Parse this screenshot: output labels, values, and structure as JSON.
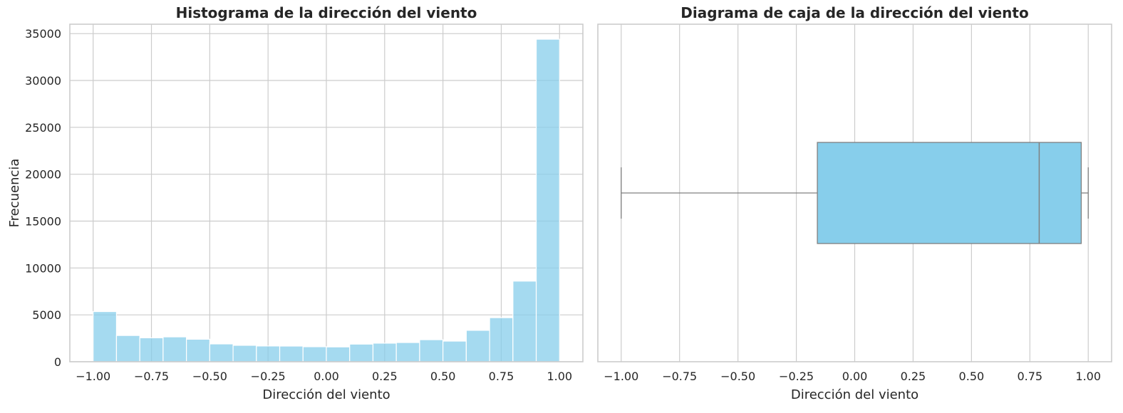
{
  "chart_data": [
    {
      "type": "bar",
      "subtype": "histogram",
      "title": "Histograma de la dirección del viento",
      "xlabel": "Dirección del viento",
      "ylabel": "Frecuencia",
      "xlim": [
        -1.1,
        1.1
      ],
      "ylim": [
        0,
        36000
      ],
      "xticks": [
        "−1.00",
        "−0.75",
        "−0.50",
        "−0.25",
        "0.00",
        "0.25",
        "0.50",
        "0.75",
        "1.00"
      ],
      "xtick_values": [
        -1.0,
        -0.75,
        -0.5,
        -0.25,
        0.0,
        0.25,
        0.5,
        0.75,
        1.0
      ],
      "yticks": [
        "0",
        "5000",
        "10000",
        "15000",
        "20000",
        "25000",
        "30000",
        "35000"
      ],
      "ytick_values": [
        0,
        5000,
        10000,
        15000,
        20000,
        25000,
        30000,
        35000
      ],
      "bin_edges": [
        -1.0,
        -0.9,
        -0.8,
        -0.7,
        -0.6,
        -0.5,
        -0.4,
        -0.3,
        -0.2,
        -0.1,
        0.0,
        0.1,
        0.2,
        0.3,
        0.4,
        0.5,
        0.6,
        0.7,
        0.8,
        0.9,
        1.0
      ],
      "values": [
        5350,
        2800,
        2550,
        2650,
        2400,
        1900,
        1750,
        1680,
        1670,
        1600,
        1580,
        1880,
        1980,
        2050,
        2350,
        2200,
        3350,
        4700,
        8600,
        34400
      ],
      "color": "#87ceeb",
      "grid": true
    },
    {
      "type": "boxplot",
      "orientation": "horizontal",
      "title": "Diagrama de caja de la dirección del viento",
      "xlabel": "Dirección del viento",
      "xlim": [
        -1.1,
        1.1
      ],
      "xticks": [
        "−1.00",
        "−0.75",
        "−0.50",
        "−0.25",
        "0.00",
        "0.25",
        "0.50",
        "0.75",
        "1.00"
      ],
      "xtick_values": [
        -1.0,
        -0.75,
        -0.5,
        -0.25,
        0.0,
        0.25,
        0.5,
        0.75,
        1.0
      ],
      "whisker_low": -1.0,
      "q1": -0.16,
      "median": 0.79,
      "q3": 0.97,
      "whisker_high": 1.0,
      "color": "#87ceeb",
      "line_color": "#808080",
      "grid": true
    }
  ]
}
